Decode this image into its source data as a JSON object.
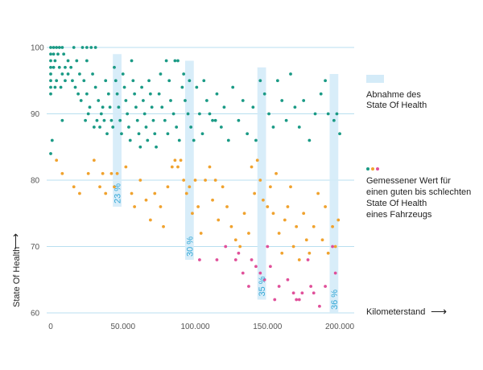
{
  "colors": {
    "gridline": "#b8dff0",
    "bar_fill": "#d4ebf8",
    "bar_text": "#35a8d6",
    "good": "#1a9a85",
    "medium": "#f0a22e",
    "bad": "#e0509a"
  },
  "chart_data": {
    "type": "scatter",
    "x_axis": {
      "label": "Kilometerstand",
      "arrow": "⟶",
      "range": [
        0,
        210000
      ],
      "ticks": [
        0,
        50000,
        100000,
        150000,
        200000
      ],
      "tick_labels": [
        "0",
        "50.000",
        "100.000",
        "150.000",
        "200.000"
      ]
    },
    "y_axis": {
      "label": "State Of Health",
      "arrow": "⟶",
      "range": [
        60,
        100
      ],
      "ticks": [
        60,
        70,
        80,
        90,
        100
      ],
      "tick_labels": [
        "60",
        "70",
        "80",
        "90",
        "100"
      ]
    },
    "grid": "horizontal",
    "legend": {
      "placement": "right",
      "bar_entry": [
        "Abnahme des",
        "State Of Health"
      ],
      "dot_entry": [
        "Gemessener Wert für",
        "einen guten bis schlechten",
        "State Of Health",
        "eines Fahrzeugs"
      ]
    },
    "decline_bars": [
      {
        "x": 43000,
        "x_end": 49000,
        "y_top": 99,
        "y_bottom": 76,
        "label": "23 %"
      },
      {
        "x": 93000,
        "x_end": 99000,
        "y_top": 98,
        "y_bottom": 68,
        "label": "30 %"
      },
      {
        "x": 143000,
        "x_end": 149000,
        "y_top": 97,
        "y_bottom": 62,
        "label": "35 %"
      },
      {
        "x": 193000,
        "x_end": 199000,
        "y_top": 96,
        "y_bottom": 60,
        "label": "36 %"
      }
    ],
    "series": [
      {
        "color_key": "good",
        "points": [
          [
            0,
            100
          ],
          [
            2000,
            100
          ],
          [
            4000,
            100
          ],
          [
            6000,
            100
          ],
          [
            8000,
            100
          ],
          [
            16000,
            100
          ],
          [
            22000,
            100
          ],
          [
            25000,
            100
          ],
          [
            28000,
            100
          ],
          [
            31000,
            100
          ],
          [
            0,
            99
          ],
          [
            2000,
            99
          ],
          [
            5000,
            99
          ],
          [
            9000,
            99
          ],
          [
            0,
            98
          ],
          [
            3000,
            98
          ],
          [
            12000,
            98
          ],
          [
            18000,
            98
          ],
          [
            25000,
            98
          ],
          [
            0,
            97
          ],
          [
            2000,
            97
          ],
          [
            6000,
            97
          ],
          [
            10000,
            97
          ],
          [
            14000,
            97
          ],
          [
            0,
            96
          ],
          [
            8000,
            96
          ],
          [
            12000,
            96
          ],
          [
            20000,
            96
          ],
          [
            0,
            95
          ],
          [
            4000,
            95
          ],
          [
            10000,
            95
          ],
          [
            0,
            94
          ],
          [
            3000,
            94
          ],
          [
            7000,
            94
          ],
          [
            0,
            93
          ],
          [
            0,
            84
          ],
          [
            1000,
            86
          ],
          [
            8000,
            89
          ],
          [
            15000,
            95
          ],
          [
            17000,
            94
          ],
          [
            19000,
            93
          ],
          [
            21000,
            92
          ],
          [
            23000,
            95
          ],
          [
            25000,
            93
          ],
          [
            27000,
            91
          ],
          [
            29000,
            96
          ],
          [
            31000,
            94
          ],
          [
            33000,
            92
          ],
          [
            35000,
            90
          ],
          [
            37000,
            89
          ],
          [
            38000,
            95
          ],
          [
            40000,
            93
          ],
          [
            41000,
            91
          ],
          [
            42000,
            89
          ],
          [
            43000,
            88
          ],
          [
            44000,
            97
          ],
          [
            45000,
            95
          ],
          [
            46000,
            93
          ],
          [
            47000,
            91
          ],
          [
            48000,
            89
          ],
          [
            49000,
            87
          ],
          [
            50000,
            96
          ],
          [
            51000,
            94
          ],
          [
            52000,
            92
          ],
          [
            53000,
            90
          ],
          [
            54000,
            88
          ],
          [
            55000,
            86
          ],
          [
            56000,
            98
          ],
          [
            57000,
            95
          ],
          [
            58000,
            93
          ],
          [
            59000,
            91
          ],
          [
            60000,
            89
          ],
          [
            61000,
            87
          ],
          [
            62000,
            85
          ],
          [
            63000,
            94
          ],
          [
            64000,
            92
          ],
          [
            65000,
            90
          ],
          [
            66000,
            88
          ],
          [
            67000,
            86
          ],
          [
            68000,
            95
          ],
          [
            69000,
            93
          ],
          [
            70000,
            91
          ],
          [
            71000,
            89
          ],
          [
            72000,
            87
          ],
          [
            73000,
            85
          ],
          [
            75000,
            93
          ],
          [
            77000,
            91
          ],
          [
            79000,
            89
          ],
          [
            81000,
            87
          ],
          [
            83000,
            92
          ],
          [
            85000,
            90
          ],
          [
            87000,
            88
          ],
          [
            89000,
            86
          ],
          [
            91000,
            94
          ],
          [
            93000,
            92
          ],
          [
            95000,
            90
          ],
          [
            97000,
            88
          ],
          [
            99000,
            86
          ],
          [
            101000,
            94
          ],
          [
            103000,
            90
          ],
          [
            105000,
            87
          ],
          [
            108000,
            92
          ],
          [
            112000,
            89
          ],
          [
            115000,
            93
          ],
          [
            118000,
            88
          ],
          [
            120000,
            91
          ],
          [
            123000,
            86
          ],
          [
            126000,
            94
          ],
          [
            130000,
            89
          ],
          [
            133000,
            92
          ],
          [
            136000,
            87
          ],
          [
            140000,
            91
          ],
          [
            142000,
            86
          ],
          [
            145000,
            95
          ],
          [
            148000,
            93
          ],
          [
            151000,
            90
          ],
          [
            154000,
            88
          ],
          [
            157000,
            95
          ],
          [
            160000,
            92
          ],
          [
            163000,
            89
          ],
          [
            166000,
            96
          ],
          [
            169000,
            91
          ],
          [
            172000,
            88
          ],
          [
            175000,
            92
          ],
          [
            179000,
            86
          ],
          [
            183000,
            90
          ],
          [
            187000,
            93
          ],
          [
            190000,
            95
          ],
          [
            192000,
            90
          ],
          [
            196000,
            89
          ],
          [
            198000,
            90
          ],
          [
            200000,
            87
          ],
          [
            32000,
            89
          ],
          [
            36000,
            91
          ],
          [
            39000,
            87
          ],
          [
            30000,
            88
          ],
          [
            26000,
            90
          ],
          [
            24000,
            89
          ],
          [
            34000,
            88
          ],
          [
            76000,
            96
          ],
          [
            80000,
            98
          ],
          [
            86000,
            98
          ],
          [
            88000,
            98
          ],
          [
            82000,
            95
          ],
          [
            92000,
            96
          ],
          [
            96000,
            95
          ],
          [
            106000,
            95
          ],
          [
            110000,
            90
          ],
          [
            114000,
            89
          ]
        ]
      },
      {
        "color_key": "medium",
        "points": [
          [
            4000,
            83
          ],
          [
            8000,
            81
          ],
          [
            16000,
            79
          ],
          [
            20000,
            78
          ],
          [
            26000,
            81
          ],
          [
            30000,
            83
          ],
          [
            34000,
            79
          ],
          [
            36000,
            81
          ],
          [
            38000,
            78
          ],
          [
            42000,
            81
          ],
          [
            44000,
            79
          ],
          [
            46000,
            81
          ],
          [
            52000,
            82
          ],
          [
            56000,
            78
          ],
          [
            58000,
            76
          ],
          [
            62000,
            80
          ],
          [
            66000,
            77
          ],
          [
            69000,
            74
          ],
          [
            72000,
            78
          ],
          [
            76000,
            76
          ],
          [
            78000,
            73
          ],
          [
            81000,
            79
          ],
          [
            84000,
            82
          ],
          [
            86000,
            83
          ],
          [
            88000,
            82
          ],
          [
            90000,
            83
          ],
          [
            92000,
            80
          ],
          [
            94000,
            78
          ],
          [
            96000,
            79
          ],
          [
            98000,
            75
          ],
          [
            100000,
            80
          ],
          [
            102000,
            76
          ],
          [
            104000,
            72
          ],
          [
            107000,
            80
          ],
          [
            110000,
            82
          ],
          [
            112000,
            77
          ],
          [
            114000,
            80
          ],
          [
            116000,
            74
          ],
          [
            119000,
            79
          ],
          [
            122000,
            76
          ],
          [
            125000,
            73
          ],
          [
            128000,
            71
          ],
          [
            131000,
            70
          ],
          [
            134000,
            75
          ],
          [
            137000,
            72
          ],
          [
            139000,
            82
          ],
          [
            141000,
            78
          ],
          [
            143000,
            83
          ],
          [
            145000,
            80
          ],
          [
            147000,
            77
          ],
          [
            150000,
            76
          ],
          [
            152000,
            79
          ],
          [
            154000,
            75
          ],
          [
            156000,
            81
          ],
          [
            158000,
            72
          ],
          [
            160000,
            69
          ],
          [
            162000,
            74
          ],
          [
            164000,
            76
          ],
          [
            166000,
            79
          ],
          [
            168000,
            70
          ],
          [
            170000,
            73
          ],
          [
            172000,
            68
          ],
          [
            175000,
            75
          ],
          [
            177000,
            71
          ],
          [
            179000,
            69
          ],
          [
            182000,
            73
          ],
          [
            185000,
            78
          ],
          [
            188000,
            71
          ],
          [
            190000,
            76
          ],
          [
            192000,
            69
          ],
          [
            195000,
            73
          ],
          [
            197000,
            70
          ],
          [
            199000,
            74
          ]
        ]
      },
      {
        "color_key": "bad",
        "points": [
          [
            103000,
            68
          ],
          [
            115000,
            68
          ],
          [
            121000,
            70
          ],
          [
            128000,
            68
          ],
          [
            130000,
            69
          ],
          [
            133000,
            66
          ],
          [
            137000,
            64
          ],
          [
            139000,
            68
          ],
          [
            142000,
            67
          ],
          [
            145000,
            66
          ],
          [
            148000,
            65
          ],
          [
            150000,
            70
          ],
          [
            152000,
            67
          ],
          [
            155000,
            62
          ],
          [
            158000,
            64
          ],
          [
            164000,
            65
          ],
          [
            168000,
            63
          ],
          [
            170000,
            62
          ],
          [
            172000,
            62
          ],
          [
            174000,
            63
          ],
          [
            178000,
            68
          ],
          [
            180000,
            64
          ],
          [
            182000,
            63
          ],
          [
            186000,
            61
          ],
          [
            190000,
            64
          ],
          [
            195000,
            70
          ],
          [
            197000,
            66
          ]
        ]
      }
    ]
  }
}
